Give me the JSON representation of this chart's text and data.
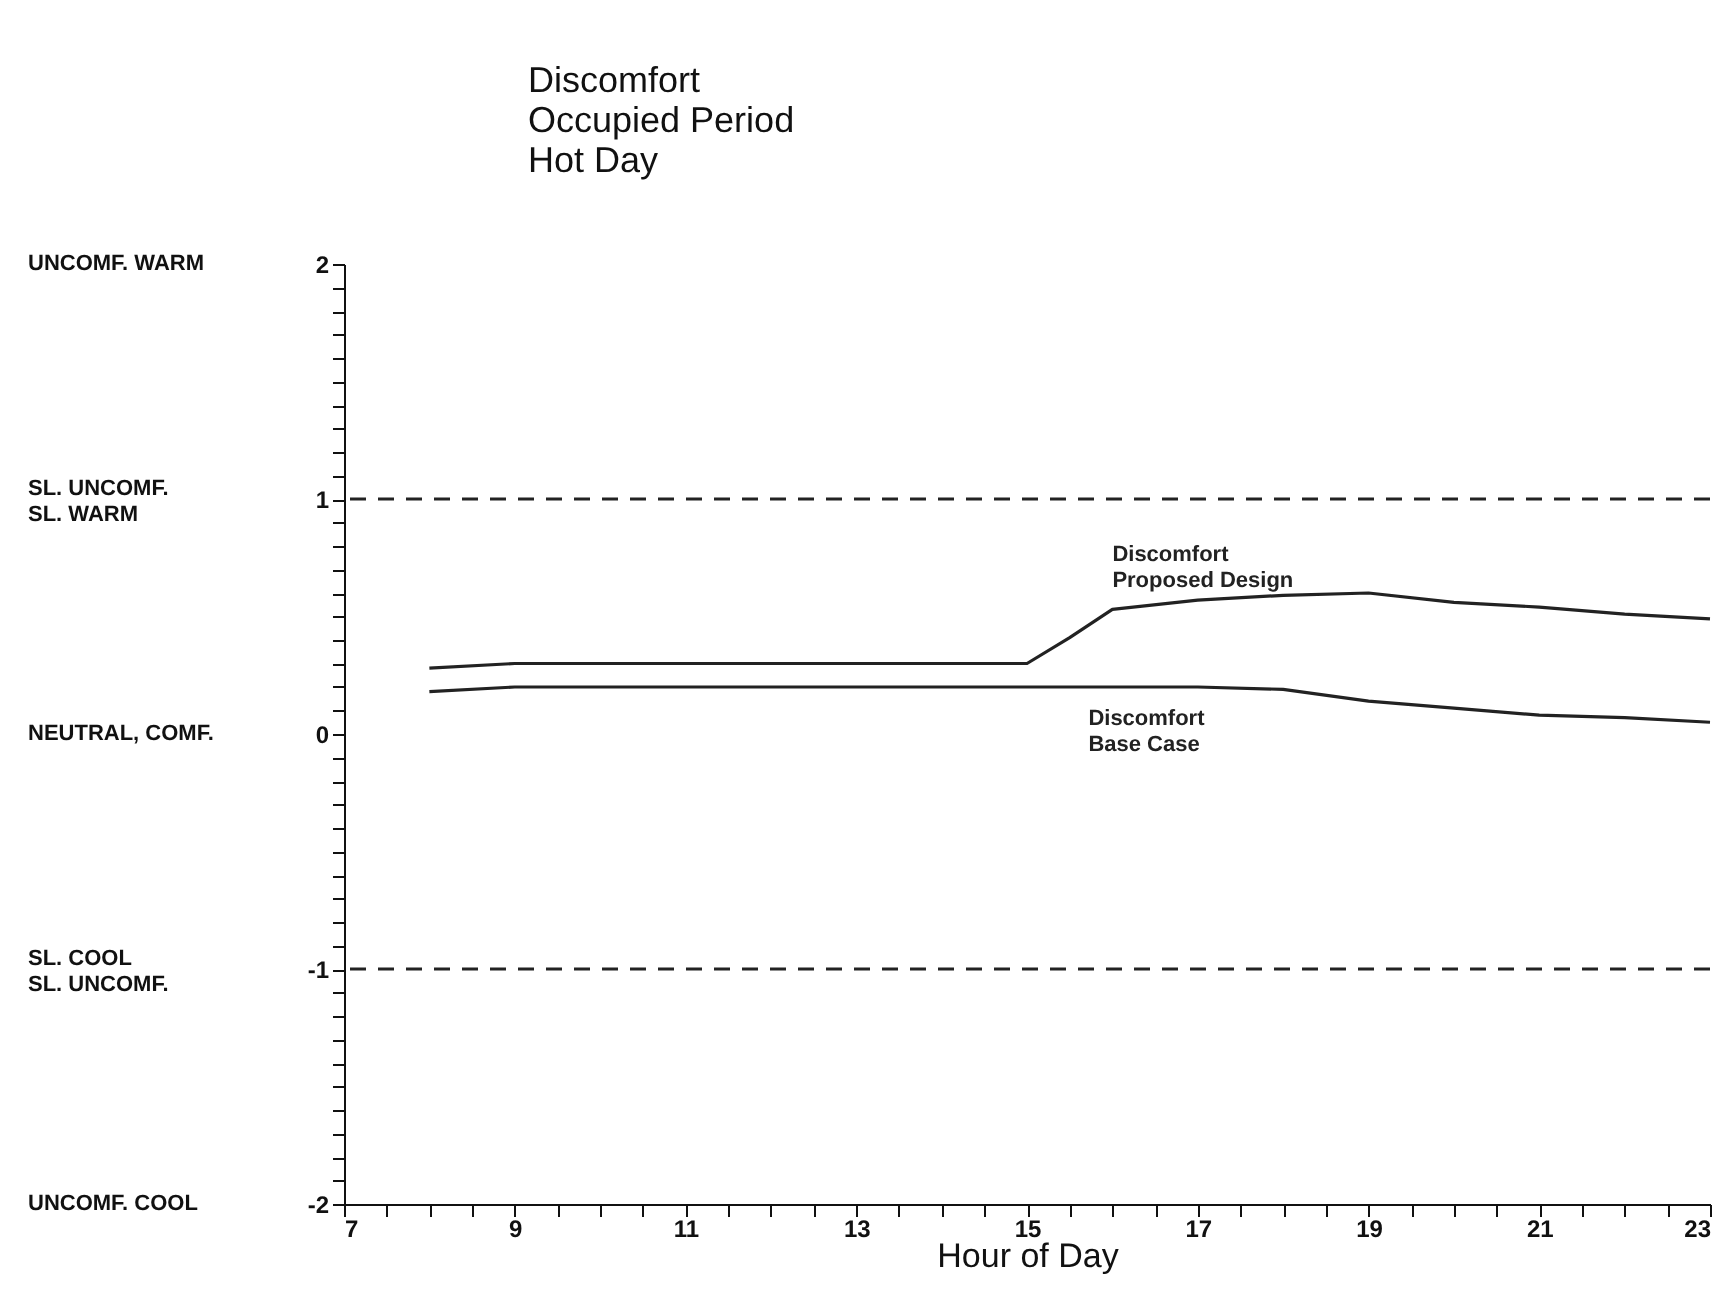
{
  "chart_data": {
    "type": "line",
    "title": "Discomfort\nOccupied Period\nHot Day",
    "xlabel": "Hour of Day",
    "x": [
      8,
      9,
      10,
      11,
      12,
      13,
      14,
      15,
      15.5,
      16,
      17,
      18,
      19,
      20,
      21,
      22,
      23
    ],
    "series": [
      {
        "name": "Discomfort\nProposed Design",
        "color": "#222222",
        "values": [
          0.28,
          0.3,
          0.3,
          0.3,
          0.3,
          0.3,
          0.3,
          0.3,
          0.41,
          0.53,
          0.57,
          0.59,
          0.6,
          0.56,
          0.54,
          0.51,
          0.49
        ]
      },
      {
        "name": "Discomfort\nBase Case",
        "color": "#222222",
        "values": [
          0.18,
          0.2,
          0.2,
          0.2,
          0.2,
          0.2,
          0.2,
          0.2,
          0.2,
          0.2,
          0.2,
          0.19,
          0.14,
          0.11,
          0.08,
          0.07,
          0.05
        ]
      }
    ],
    "xlim": [
      7,
      23
    ],
    "ylim": [
      -2,
      2
    ],
    "xticks": [
      7,
      {
        "value": 7.5,
        "label": null
      },
      {
        "value": 8,
        "label": null
      },
      {
        "value": 8.5,
        "label": null
      },
      9,
      {
        "value": 9.5,
        "label": null
      },
      {
        "value": 10,
        "label": null
      },
      {
        "value": 10.5,
        "label": null
      },
      11,
      {
        "value": 11.5,
        "label": null
      },
      {
        "value": 12,
        "label": null
      },
      {
        "value": 12.5,
        "label": null
      },
      13,
      {
        "value": 13.5,
        "label": null
      },
      {
        "value": 14,
        "label": null
      },
      {
        "value": 14.5,
        "label": null
      },
      15,
      {
        "value": 15.5,
        "label": null
      },
      {
        "value": 16,
        "label": null
      },
      {
        "value": 16.5,
        "label": null
      },
      17,
      {
        "value": 17.5,
        "label": null
      },
      {
        "value": 18,
        "label": null
      },
      {
        "value": 18.5,
        "label": null
      },
      19,
      {
        "value": 19.5,
        "label": null
      },
      {
        "value": 20,
        "label": null
      },
      {
        "value": 20.5,
        "label": null
      },
      21,
      {
        "value": 21.5,
        "label": null
      },
      {
        "value": 22,
        "label": null
      },
      {
        "value": 22.5,
        "label": null
      },
      23
    ],
    "yticks": [
      -2,
      {
        "value": -1.9,
        "label": null
      },
      {
        "value": -1.8,
        "label": null
      },
      {
        "value": -1.7,
        "label": null
      },
      {
        "value": -1.6,
        "label": null
      },
      {
        "value": -1.5,
        "label": null
      },
      {
        "value": -1.4,
        "label": null
      },
      {
        "value": -1.3,
        "label": null
      },
      {
        "value": -1.2,
        "label": null
      },
      {
        "value": -1.1,
        "label": null
      },
      -1,
      {
        "value": -0.9,
        "label": null
      },
      {
        "value": -0.8,
        "label": null
      },
      {
        "value": -0.7,
        "label": null
      },
      {
        "value": -0.6,
        "label": null
      },
      {
        "value": -0.5,
        "label": null
      },
      {
        "value": -0.4,
        "label": null
      },
      {
        "value": -0.3,
        "label": null
      },
      {
        "value": -0.2,
        "label": null
      },
      {
        "value": -0.1,
        "label": null
      },
      0,
      {
        "value": 0.1,
        "label": null
      },
      {
        "value": 0.2,
        "label": null
      },
      {
        "value": 0.3,
        "label": null
      },
      {
        "value": 0.4,
        "label": null
      },
      {
        "value": 0.5,
        "label": null
      },
      {
        "value": 0.6,
        "label": null
      },
      {
        "value": 0.7,
        "label": null
      },
      {
        "value": 0.8,
        "label": null
      },
      {
        "value": 0.9,
        "label": null
      },
      1,
      {
        "value": 1.1,
        "label": null
      },
      {
        "value": 1.2,
        "label": null
      },
      {
        "value": 1.3,
        "label": null
      },
      {
        "value": 1.4,
        "label": null
      },
      {
        "value": 1.5,
        "label": null
      },
      {
        "value": 1.6,
        "label": null
      },
      {
        "value": 1.7,
        "label": null
      },
      {
        "value": 1.8,
        "label": null
      },
      {
        "value": 1.9,
        "label": null
      },
      2
    ],
    "annotations": [
      "UNCOMF. WARM",
      "SL. UNCOMF.\nSL. WARM",
      "NEUTRAL, COMF.",
      "SL. COOL\nSL. UNCOMF.",
      "UNCOMF. COOL"
    ],
    "ref_lines": [
      {
        "axis": "y",
        "value": 1,
        "line_style": "dashed",
        "color": "#222222"
      },
      {
        "axis": "y",
        "value": -1,
        "line_style": "dashed",
        "color": "#222222"
      }
    ],
    "grid": false,
    "marker": "none",
    "line_style": "solid"
  }
}
